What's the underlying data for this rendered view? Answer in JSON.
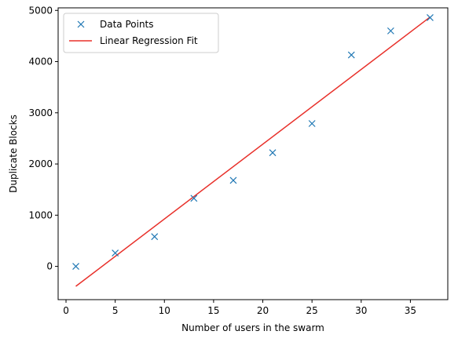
{
  "chart_data": {
    "type": "scatter",
    "title": "",
    "xlabel": "Number of users in the swarm",
    "ylabel": "Duplicate Blocks",
    "xlim": [
      -0.8,
      38.8
    ],
    "ylim": [
      -650,
      5050
    ],
    "xticks": [
      0,
      5,
      10,
      15,
      20,
      25,
      30,
      35
    ],
    "yticks": [
      0,
      1000,
      2000,
      3000,
      4000,
      5000
    ],
    "grid": false,
    "legend": "top-left",
    "series": [
      {
        "name": "Data Points",
        "kind": "markers",
        "marker": "x",
        "color": "#1f77b4",
        "x": [
          1,
          5,
          9,
          13,
          17,
          21,
          25,
          29,
          33,
          37
        ],
        "y": [
          0,
          260,
          580,
          1330,
          1680,
          2220,
          2790,
          4130,
          4600,
          4860
        ]
      },
      {
        "name": "Linear Regression Fit",
        "kind": "line",
        "color": "#e8302a",
        "x": [
          1,
          37
        ],
        "y": [
          -390,
          4870
        ]
      }
    ]
  }
}
